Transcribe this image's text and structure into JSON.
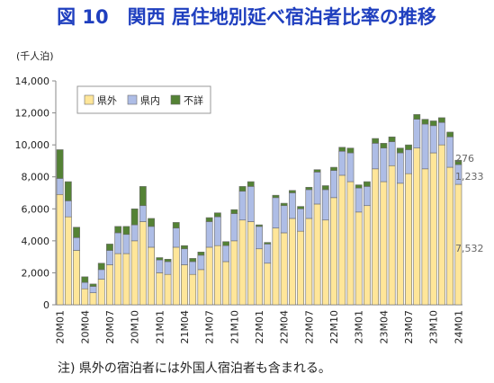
{
  "title": "図 10　関西 居住地別延べ宿泊者比率の推移",
  "note": "注) 県外の宿泊者には外国人宿泊者も含まれる。",
  "colors": {
    "title": "#1f3fbf",
    "kengai": "#ffe699",
    "kennai": "#aebde6",
    "fusho": "#548235",
    "bar_stroke": "#6b6b6b"
  },
  "chart_data": {
    "type": "bar",
    "stacked": true,
    "ylabel": "(千人泊)",
    "ylim": [
      0,
      14000
    ],
    "yticks": [
      0,
      2000,
      4000,
      6000,
      8000,
      10000,
      12000,
      14000
    ],
    "ytick_labels": [
      "0",
      "2,000",
      "4,000",
      "6,000",
      "8,000",
      "10,000",
      "12,000",
      "14,000"
    ],
    "grid": false,
    "legend": {
      "placement": "top-left",
      "entries": [
        "県外",
        "県内",
        "不詳"
      ]
    },
    "categories": [
      "20M01",
      "20M02",
      "20M03",
      "20M04",
      "20M05",
      "20M06",
      "20M07",
      "20M08",
      "20M09",
      "20M10",
      "20M11",
      "20M12",
      "21M01",
      "21M02",
      "21M03",
      "21M04",
      "21M05",
      "21M06",
      "21M07",
      "21M08",
      "21M09",
      "21M10",
      "21M11",
      "21M12",
      "22M01",
      "22M02",
      "22M03",
      "22M04",
      "22M05",
      "22M06",
      "22M07",
      "22M08",
      "22M09",
      "22M10",
      "22M11",
      "22M12",
      "23M01",
      "23M02",
      "23M03",
      "23M04",
      "23M05",
      "23M06",
      "23M07",
      "23M08",
      "23M09",
      "23M10",
      "23M11",
      "23M12",
      "24M01"
    ],
    "x_labels_shown": [
      "20M01",
      "20M04",
      "20M07",
      "20M10",
      "21M01",
      "21M04",
      "21M07",
      "21M10",
      "22M01",
      "22M04",
      "22M07",
      "22M10",
      "23M01",
      "23M04",
      "23M07",
      "23M10",
      "24M01"
    ],
    "series": [
      {
        "name": "県外",
        "values": [
          6900,
          5500,
          3400,
          1000,
          750,
          1600,
          2500,
          3200,
          3200,
          4000,
          5200,
          3600,
          2000,
          1900,
          3600,
          2500,
          1900,
          2200,
          3600,
          3700,
          2700,
          4000,
          5300,
          5200,
          3500,
          2600,
          4800,
          4500,
          5400,
          4600,
          5400,
          6300,
          5300,
          6700,
          8100,
          7700,
          5800,
          6200,
          8500,
          7700,
          8700,
          7600,
          8200,
          9800,
          8500,
          9500,
          10000,
          8600,
          7532
        ]
      },
      {
        "name": "県内",
        "values": [
          1000,
          1000,
          800,
          400,
          400,
          600,
          900,
          1300,
          1200,
          1000,
          1000,
          1300,
          800,
          800,
          1200,
          1000,
          800,
          900,
          1600,
          1800,
          1000,
          1700,
          1800,
          2200,
          1400,
          1200,
          1900,
          1700,
          1600,
          1400,
          1800,
          2000,
          1900,
          1700,
          1500,
          1800,
          1500,
          1200,
          1600,
          2100,
          1500,
          1900,
          1500,
          1800,
          2800,
          1700,
          1400,
          1900,
          1233
        ]
      },
      {
        "name": "不詳",
        "values": [
          1800,
          1200,
          650,
          350,
          150,
          400,
          400,
          400,
          500,
          1000,
          1200,
          500,
          150,
          150,
          350,
          200,
          200,
          200,
          250,
          250,
          250,
          250,
          300,
          300,
          100,
          100,
          150,
          150,
          150,
          150,
          150,
          150,
          250,
          200,
          250,
          300,
          200,
          300,
          300,
          300,
          300,
          300,
          300,
          300,
          300,
          300,
          300,
          300,
          276
        ]
      }
    ],
    "data_labels": {
      "県外": "7,532",
      "県内": "1,233",
      "不詳": "276"
    }
  }
}
